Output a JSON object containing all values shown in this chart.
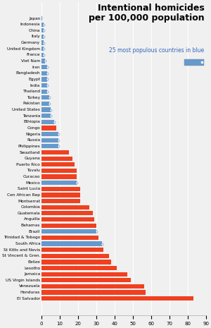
{
  "title": "Intentional homicides\nper 100,000 population",
  "subtitle": "25 most populous countries in blue",
  "categories": [
    "Japan",
    "Indonesia",
    "China",
    "Italy",
    "Germany",
    "United Kingdom",
    "France",
    "Viet Nam",
    "Iran",
    "Bangladesh",
    "Egypt",
    "India",
    "Thailand",
    "Turkey",
    "Pakistan",
    "United States",
    "Tanzania",
    "Ethiopia",
    "Congo",
    "Nigeria",
    "Russia",
    "Philippines",
    "Swaziland",
    "Guyana",
    "Puerto Rico",
    "Tuvalu",
    "Curacao",
    "Mexico",
    "Saint Lucia",
    "Cen African Rep",
    "Montserrat",
    "Colombia",
    "Guatemala",
    "Anguilla",
    "Bahamas",
    "Brazil",
    "Trinidad & Tobago",
    "South Africa",
    "St Kitts and Nevis",
    "St Vincent & Gren.",
    "Belize",
    "Lesotho",
    "Jamaica",
    "US Virgin Islands",
    "Venezuela",
    "Honduras",
    "El Salvador"
  ],
  "values": [
    0.3,
    1.0,
    1.0,
    1.0,
    1.0,
    1.0,
    1.0,
    2.0,
    3.0,
    3.0,
    3.0,
    3.0,
    3.0,
    4.0,
    4.0,
    5.0,
    5.0,
    7.0,
    8.0,
    9.0,
    9.0,
    9.0,
    15.0,
    17.0,
    18.0,
    19.0,
    19.0,
    19.0,
    21.0,
    21.0,
    21.0,
    26.0,
    28.0,
    29.0,
    30.0,
    30.0,
    31.0,
    33.0,
    34.0,
    37.0,
    38.0,
    41.0,
    47.0,
    49.0,
    56.0,
    57.0,
    83.0
  ],
  "is_populous": [
    true,
    true,
    true,
    true,
    true,
    true,
    true,
    true,
    true,
    true,
    true,
    true,
    true,
    true,
    true,
    true,
    true,
    true,
    false,
    true,
    true,
    true,
    false,
    false,
    false,
    false,
    false,
    true,
    false,
    false,
    false,
    false,
    false,
    false,
    false,
    true,
    false,
    true,
    false,
    false,
    false,
    false,
    false,
    false,
    false,
    false,
    false
  ],
  "bar_color_red": "#f04020",
  "bar_color_blue": "#6699cc",
  "xlim": [
    0,
    90
  ],
  "xticks": [
    0,
    10,
    20,
    30,
    40,
    50,
    60,
    70,
    80,
    90
  ],
  "bg_color": "#f0f0f0",
  "title_color": "#000000",
  "subtitle_color": "#3366bb"
}
